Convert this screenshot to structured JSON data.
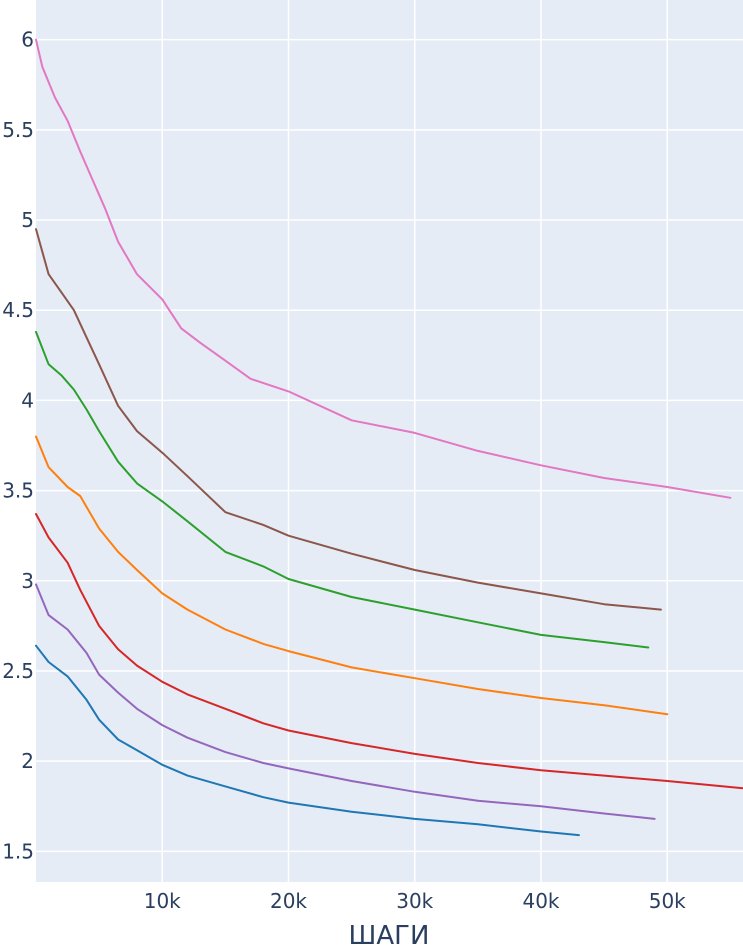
{
  "chart_data": {
    "type": "line",
    "title": "",
    "xlabel": "ШАГИ",
    "ylabel": "",
    "xlim": [
      0,
      56000
    ],
    "ylim": [
      1.33,
      6.22
    ],
    "grid": true,
    "legend": "none",
    "plot_bgcolor": "#e5ecf6",
    "grid_color": "#ffffff",
    "x_ticks": [
      {
        "value": 10000,
        "label": "10k"
      },
      {
        "value": 20000,
        "label": "20k"
      },
      {
        "value": 30000,
        "label": "30k"
      },
      {
        "value": 40000,
        "label": "40k"
      },
      {
        "value": 50000,
        "label": "50k"
      }
    ],
    "y_ticks": [
      {
        "value": 1.5,
        "label": "1.5"
      },
      {
        "value": 2,
        "label": "2"
      },
      {
        "value": 2.5,
        "label": "2.5"
      },
      {
        "value": 3,
        "label": "3"
      },
      {
        "value": 3.5,
        "label": "3.5"
      },
      {
        "value": 4,
        "label": "4"
      },
      {
        "value": 4.5,
        "label": "4.5"
      },
      {
        "value": 5,
        "label": "5"
      },
      {
        "value": 5.5,
        "label": "5.5"
      },
      {
        "value": 6,
        "label": "6"
      }
    ],
    "series": [
      {
        "color": "#1f77b4",
        "x": [
          0,
          1000,
          2500,
          4000,
          5000,
          6500,
          8000,
          10000,
          12000,
          15000,
          18000,
          20000,
          25000,
          30000,
          35000,
          40000,
          43000
        ],
        "y": [
          2.64,
          2.55,
          2.47,
          2.34,
          2.23,
          2.12,
          2.06,
          1.98,
          1.92,
          1.86,
          1.8,
          1.77,
          1.72,
          1.68,
          1.65,
          1.61,
          1.59
        ]
      },
      {
        "color": "#9467bd",
        "x": [
          0,
          1000,
          2500,
          4000,
          5000,
          6500,
          8000,
          10000,
          12000,
          15000,
          18000,
          20000,
          25000,
          30000,
          35000,
          40000,
          45000,
          49000
        ],
        "y": [
          2.98,
          2.81,
          2.73,
          2.6,
          2.48,
          2.38,
          2.29,
          2.2,
          2.13,
          2.05,
          1.99,
          1.96,
          1.89,
          1.83,
          1.78,
          1.75,
          1.71,
          1.68
        ]
      },
      {
        "color": "#d62728",
        "x": [
          0,
          1000,
          2500,
          3500,
          5000,
          6500,
          8000,
          10000,
          12000,
          15000,
          18000,
          20000,
          25000,
          30000,
          35000,
          40000,
          45000,
          50000,
          56000
        ],
        "y": [
          3.37,
          3.24,
          3.1,
          2.95,
          2.75,
          2.62,
          2.53,
          2.44,
          2.37,
          2.29,
          2.21,
          2.17,
          2.1,
          2.04,
          1.99,
          1.95,
          1.92,
          1.89,
          1.85
        ]
      },
      {
        "color": "#ff7f0e",
        "x": [
          0,
          1000,
          2500,
          3500,
          5000,
          6500,
          8000,
          10000,
          12000,
          15000,
          18000,
          20000,
          25000,
          30000,
          35000,
          40000,
          45000,
          50000
        ],
        "y": [
          3.8,
          3.63,
          3.52,
          3.47,
          3.29,
          3.16,
          3.06,
          2.93,
          2.84,
          2.73,
          2.65,
          2.61,
          2.52,
          2.46,
          2.4,
          2.35,
          2.31,
          2.26
        ]
      },
      {
        "color": "#2ca02c",
        "x": [
          0,
          1000,
          2000,
          3000,
          4000,
          5000,
          6500,
          8000,
          10000,
          12000,
          15000,
          18000,
          20000,
          25000,
          30000,
          35000,
          40000,
          45000,
          48500
        ],
        "y": [
          4.38,
          4.2,
          4.14,
          4.06,
          3.95,
          3.83,
          3.66,
          3.54,
          3.44,
          3.33,
          3.16,
          3.08,
          3.01,
          2.91,
          2.84,
          2.77,
          2.7,
          2.66,
          2.63
        ]
      },
      {
        "color": "#8c564b",
        "x": [
          0,
          1000,
          2000,
          3000,
          4000,
          5000,
          6500,
          8000,
          10000,
          12000,
          15000,
          18000,
          20000,
          25000,
          30000,
          35000,
          40000,
          45000,
          49500
        ],
        "y": [
          4.95,
          4.7,
          4.6,
          4.5,
          4.35,
          4.2,
          3.97,
          3.83,
          3.71,
          3.58,
          3.38,
          3.31,
          3.25,
          3.15,
          3.06,
          2.99,
          2.93,
          2.87,
          2.84
        ]
      },
      {
        "color": "#e377c2",
        "x": [
          0,
          500,
          1500,
          2500,
          3500,
          4500,
          5500,
          6500,
          8000,
          10000,
          11500,
          13000,
          15000,
          17000,
          20000,
          25000,
          30000,
          35000,
          40000,
          45000,
          50000,
          55000
        ],
        "y": [
          6.0,
          5.85,
          5.68,
          5.55,
          5.38,
          5.22,
          5.06,
          4.88,
          4.7,
          4.56,
          4.4,
          4.32,
          4.22,
          4.12,
          4.05,
          3.89,
          3.82,
          3.72,
          3.64,
          3.57,
          3.52,
          3.46
        ]
      }
    ]
  }
}
